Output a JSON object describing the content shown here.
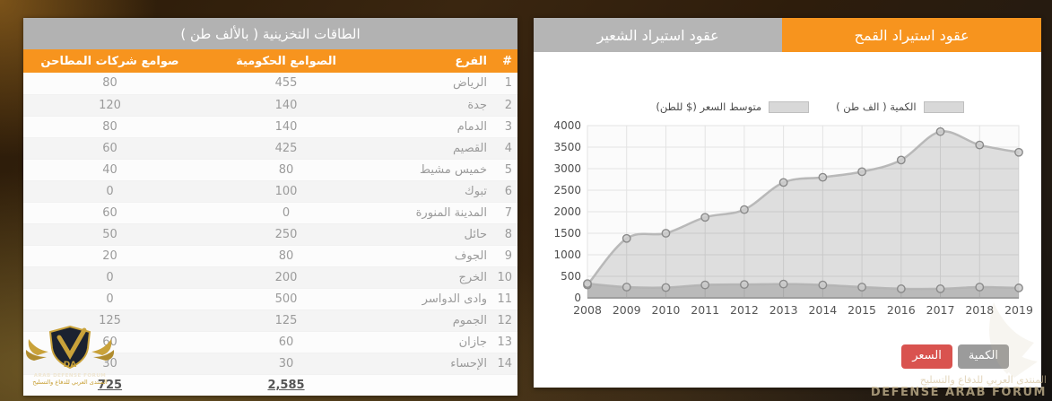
{
  "storage_table": {
    "title": "الطاقات التخزينية ( بالألف طن )",
    "columns": {
      "index": "#",
      "branch": "الفرع",
      "gov": "الصوامع الحكومية",
      "mills": "صوامع شركات المطاحن"
    },
    "rows": [
      {
        "index": "1",
        "branch": "الرياض",
        "gov": "455",
        "mills": "80"
      },
      {
        "index": "2",
        "branch": "جدة",
        "gov": "140",
        "mills": "120"
      },
      {
        "index": "3",
        "branch": "الدمام",
        "gov": "140",
        "mills": "80"
      },
      {
        "index": "4",
        "branch": "القصيم",
        "gov": "425",
        "mills": "60"
      },
      {
        "index": "5",
        "branch": "خميس مشيط",
        "gov": "80",
        "mills": "40"
      },
      {
        "index": "6",
        "branch": "تبوك",
        "gov": "100",
        "mills": "0"
      },
      {
        "index": "7",
        "branch": "المدينة المنورة",
        "gov": "0",
        "mills": "60"
      },
      {
        "index": "8",
        "branch": "حائل",
        "gov": "250",
        "mills": "50"
      },
      {
        "index": "9",
        "branch": "الجوف",
        "gov": "80",
        "mills": "20"
      },
      {
        "index": "10",
        "branch": "الخرج",
        "gov": "200",
        "mills": "0"
      },
      {
        "index": "11",
        "branch": "وادى الدواسر",
        "gov": "500",
        "mills": "0"
      },
      {
        "index": "12",
        "branch": "الجموم",
        "gov": "125",
        "mills": "125"
      },
      {
        "index": "13",
        "branch": "جازان",
        "gov": "60",
        "mills": "60"
      },
      {
        "index": "14",
        "branch": "الإحساء",
        "gov": "30",
        "mills": "30"
      }
    ],
    "totals": {
      "gov": "2,585",
      "mills": "725"
    }
  },
  "contracts_panel": {
    "tabs": {
      "barley": "عقود استيراد الشعير",
      "wheat": "عقود استيراد القمح"
    },
    "active_tab": "عقود استيراد القمح",
    "buttons": {
      "price": "السعر",
      "quantity": "الكمية"
    }
  },
  "chart_data": {
    "type": "area",
    "title": "عقود استيراد القمح",
    "x": [
      2008,
      2009,
      2010,
      2011,
      2012,
      2013,
      2014,
      2015,
      2016,
      2017,
      2018,
      2019
    ],
    "series": [
      {
        "name": "الكمية ( الف طن )",
        "type": "area",
        "values": [
          300,
          1380,
          1500,
          1870,
          2050,
          2680,
          2800,
          2930,
          3200,
          3860,
          3550,
          3380
        ]
      },
      {
        "name": "متوسط السعر ($ للطن)",
        "type": "area",
        "values": [
          330,
          250,
          240,
          300,
          310,
          320,
          300,
          250,
          210,
          210,
          250,
          230
        ]
      }
    ],
    "ylim": [
      0,
      4000
    ],
    "ytick_step": 500,
    "grid": true,
    "legend_position": "top"
  },
  "colors": {
    "accent_orange": "#f7941e",
    "header_gray": "#b2b2b2",
    "tab_gray": "#b5b5b5",
    "button_red": "#d9534f",
    "button_gray": "#9b9b9b",
    "series_line": "#b3b3b3",
    "series_fill": "#d9d9d9",
    "marker_fill": "#cccccc",
    "marker_stroke": "#8a8a8a",
    "grid_line": "#e3e3e3",
    "plot_bg": "#fbfbfb",
    "axis_text": "#4d4d4d"
  },
  "watermarks": {
    "left_logo": {
      "monogram": "DA",
      "title": "ARAB DEFENSE FORUM",
      "subtitle": "المنتدى العربي للدفاع والتسليح"
    },
    "right": {
      "arabic": "المنتدى العربي للدفاع والتسليح",
      "english": "DEFENSE ARAB FORUM"
    }
  }
}
